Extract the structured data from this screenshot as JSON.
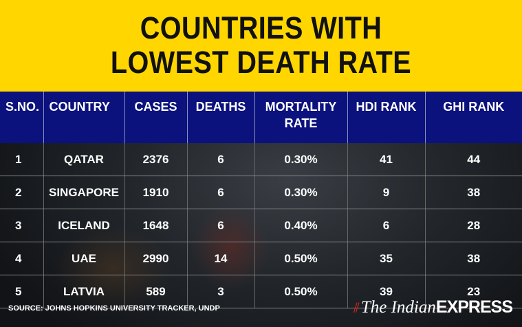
{
  "title": [
    "COUNTRIES WITH",
    "LOWEST DEATH RATE"
  ],
  "colors": {
    "title_bg": "#ffd600",
    "header_bg": "#0b117d"
  },
  "chart_data": {
    "type": "table",
    "title": "COUNTRIES WITH LOWEST DEATH RATE",
    "columns": [
      "S.NO.",
      "COUNTRY",
      "CASES",
      "DEATHS",
      "MORTALITY RATE",
      "HDI RANK",
      "GHI RANK"
    ],
    "rows": [
      [
        "1",
        "QATAR",
        "2376",
        "6",
        "0.30%",
        "41",
        "44"
      ],
      [
        "2",
        "SINGAPORE",
        "1910",
        "6",
        "0.30%",
        "9",
        "38"
      ],
      [
        "3",
        "ICELAND",
        "1648",
        "6",
        "0.40%",
        "6",
        "28"
      ],
      [
        "4",
        "UAE",
        "2990",
        "14",
        "0.50%",
        "35",
        "38"
      ],
      [
        "5",
        "LATVIA",
        "589",
        "3",
        "0.50%",
        "39",
        "23"
      ]
    ]
  },
  "footer": {
    "source": "SOURCE:  JOHNS HOPKINS UNIVERSITY TRACKER, UNDP",
    "logo_italic": "The Indian",
    "logo_bold": "EXPRESS"
  }
}
